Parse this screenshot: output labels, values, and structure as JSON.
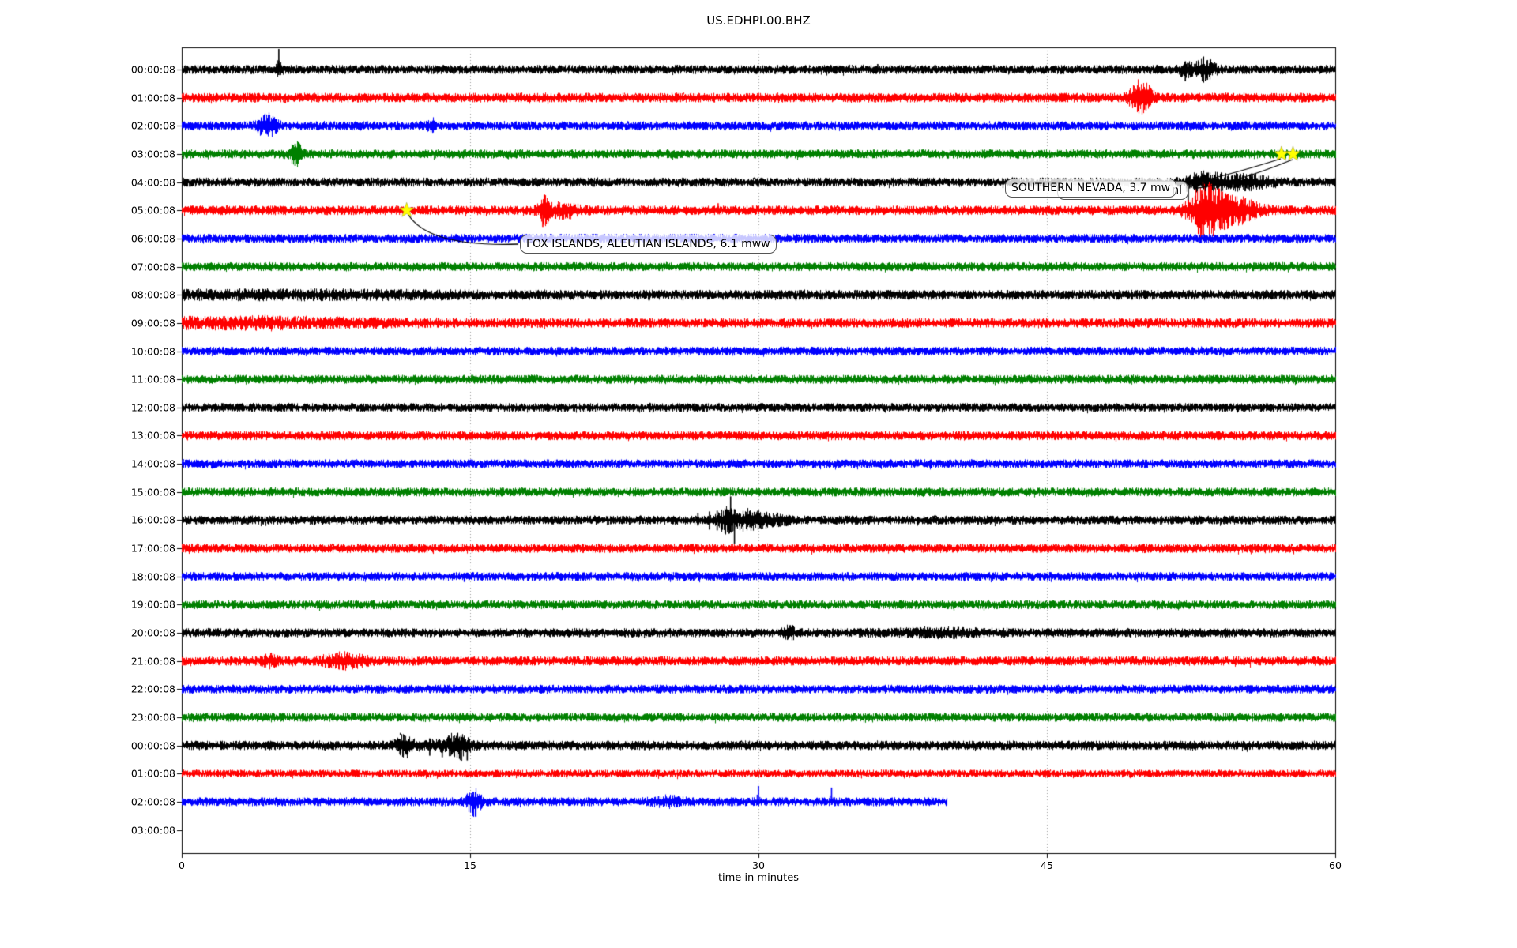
{
  "chart_data": {
    "type": "line",
    "subtype": "seismogram-helicorder-dayplot",
    "title": "US.EDHPI.00.BHZ",
    "xlabel": "time in minutes",
    "xlim": [
      0,
      60
    ],
    "xticks": [
      0,
      15,
      30,
      45,
      60
    ],
    "grid": {
      "vertical_dotted_minutes": [
        15,
        30,
        45
      ],
      "grid_color": "#999999"
    },
    "color_cycle": [
      "#000000",
      "#ff0000",
      "#0000ff",
      "#008000"
    ],
    "rows": [
      {
        "label": "00:00:08",
        "color": "#000000",
        "start_minute": 0,
        "end_minute": 60,
        "base_amp": 4.0,
        "events": [
          {
            "k": "burst",
            "t": 5.05,
            "w": 0.15,
            "a": 5
          },
          {
            "k": "spike",
            "t": 5.05,
            "up": 26,
            "dn": 7
          },
          {
            "k": "spike",
            "t": 36.2,
            "up": 7,
            "dn": 3
          },
          {
            "k": "burst",
            "t": 52.2,
            "w": 0.3,
            "a": 5
          },
          {
            "k": "spike",
            "t": 52.2,
            "up": 5,
            "dn": 15
          },
          {
            "k": "burst",
            "t": 53.2,
            "w": 0.5,
            "a": 8
          },
          {
            "k": "spike",
            "t": 53.35,
            "up": 12,
            "dn": 13
          }
        ]
      },
      {
        "label": "01:00:08",
        "color": "#ff0000",
        "start_minute": 0,
        "end_minute": 60,
        "base_amp": 4.2,
        "events": [
          {
            "k": "burst",
            "t": 49.9,
            "w": 0.55,
            "a": 13
          },
          {
            "k": "spike",
            "t": 49.75,
            "up": 12,
            "dn": 17
          },
          {
            "k": "spike",
            "t": 50.15,
            "up": 11,
            "dn": 15
          }
        ]
      },
      {
        "label": "02:00:08",
        "color": "#0000ff",
        "start_minute": 0,
        "end_minute": 60,
        "base_amp": 4.0,
        "events": [
          {
            "k": "burst",
            "t": 4.45,
            "w": 0.45,
            "a": 8
          },
          {
            "k": "spike",
            "t": 4.45,
            "up": 10,
            "dn": 11
          },
          {
            "k": "burst",
            "t": 13.0,
            "w": 0.2,
            "a": 4
          }
        ]
      },
      {
        "label": "03:00:08",
        "color": "#008000",
        "start_minute": 0,
        "end_minute": 60,
        "base_amp": 4.0,
        "events": [
          {
            "k": "burst",
            "t": 5.95,
            "w": 0.3,
            "a": 9
          },
          {
            "k": "spike",
            "t": 5.9,
            "up": 13,
            "dn": 15
          },
          {
            "k": "spike",
            "t": 6.15,
            "up": 11,
            "dn": 7
          }
        ]
      },
      {
        "label": "04:00:08",
        "color": "#000000",
        "start_minute": 0,
        "end_minute": 60,
        "base_amp": 4.0,
        "events": [
          {
            "k": "spike",
            "t": 52.35,
            "up": 7,
            "dn": 27
          },
          {
            "k": "burst",
            "t": 53.2,
            "w": 0.9,
            "a": 6
          },
          {
            "k": "burst",
            "t": 55.3,
            "w": 1.4,
            "a": 4.5
          }
        ]
      },
      {
        "label": "05:00:08",
        "color": "#ff0000",
        "start_minute": 0,
        "end_minute": 60,
        "base_amp": 4.2,
        "events": [
          {
            "k": "spike",
            "t": 18.78,
            "up": 9,
            "dn": 21
          },
          {
            "k": "burst",
            "t": 18.85,
            "w": 0.3,
            "a": 9
          },
          {
            "k": "burst",
            "t": 19.8,
            "w": 0.9,
            "a": 4
          },
          {
            "k": "spike",
            "t": 27.9,
            "up": 9,
            "dn": 5
          },
          {
            "k": "spike",
            "t": 29.7,
            "up": 6,
            "dn": 3
          },
          {
            "k": "spike",
            "t": 44.3,
            "up": 6,
            "dn": 3
          },
          {
            "k": "burst",
            "t": 53.2,
            "w": 0.8,
            "a": 20
          },
          {
            "k": "spike",
            "t": 53.05,
            "up": 25,
            "dn": 31
          },
          {
            "k": "burst",
            "t": 54.6,
            "w": 1.3,
            "a": 10
          },
          {
            "k": "spike",
            "t": 54.3,
            "up": 14,
            "dn": 12
          },
          {
            "k": "spike",
            "t": 54.9,
            "up": 12,
            "dn": 10
          }
        ]
      },
      {
        "label": "06:00:08",
        "color": "#0000ff",
        "start_minute": 0,
        "end_minute": 60,
        "base_amp": 4.0,
        "events": [
          {
            "k": "spike",
            "t": 22.3,
            "up": 3,
            "dn": 6
          }
        ]
      },
      {
        "label": "07:00:08",
        "color": "#008000",
        "start_minute": 0,
        "end_minute": 60,
        "base_amp": 3.9,
        "events": []
      },
      {
        "label": "08:00:08",
        "color": "#000000",
        "start_minute": 0,
        "end_minute": 60,
        "base_amp": 4.4,
        "events": [
          {
            "k": "burst",
            "t": 6.0,
            "w": 8.0,
            "a": 1.3
          }
        ]
      },
      {
        "label": "09:00:08",
        "color": "#ff0000",
        "start_minute": 0,
        "end_minute": 60,
        "base_amp": 4.2,
        "events": [
          {
            "k": "burst",
            "t": 3.5,
            "w": 6.5,
            "a": 2.6
          }
        ]
      },
      {
        "label": "10:00:08",
        "color": "#0000ff",
        "start_minute": 0,
        "end_minute": 60,
        "base_amp": 3.9,
        "events": []
      },
      {
        "label": "11:00:08",
        "color": "#008000",
        "start_minute": 0,
        "end_minute": 60,
        "base_amp": 3.9,
        "events": []
      },
      {
        "label": "12:00:08",
        "color": "#000000",
        "start_minute": 0,
        "end_minute": 60,
        "base_amp": 3.8,
        "events": [
          {
            "k": "spike",
            "t": 24.35,
            "up": 6,
            "dn": 6
          }
        ]
      },
      {
        "label": "13:00:08",
        "color": "#ff0000",
        "start_minute": 0,
        "end_minute": 60,
        "base_amp": 4.0,
        "events": []
      },
      {
        "label": "14:00:08",
        "color": "#0000ff",
        "start_minute": 0,
        "end_minute": 60,
        "base_amp": 3.9,
        "events": []
      },
      {
        "label": "15:00:08",
        "color": "#008000",
        "start_minute": 0,
        "end_minute": 60,
        "base_amp": 3.9,
        "events": []
      },
      {
        "label": "16:00:08",
        "color": "#000000",
        "start_minute": 0,
        "end_minute": 60,
        "base_amp": 3.9,
        "events": [
          {
            "k": "spike",
            "t": 26.85,
            "up": 9,
            "dn": 7
          },
          {
            "k": "spike",
            "t": 27.45,
            "up": 11,
            "dn": 12
          },
          {
            "k": "spike",
            "t": 27.85,
            "up": 12,
            "dn": 13
          },
          {
            "k": "burst",
            "t": 28.3,
            "w": 0.5,
            "a": 9
          },
          {
            "k": "spike",
            "t": 28.55,
            "up": 30,
            "dn": 12
          },
          {
            "k": "spike",
            "t": 28.75,
            "up": 14,
            "dn": 30
          },
          {
            "k": "burst",
            "t": 29.4,
            "w": 0.7,
            "a": 6
          },
          {
            "k": "spike",
            "t": 29.55,
            "up": 11,
            "dn": 9
          },
          {
            "k": "burst",
            "t": 30.6,
            "w": 1.0,
            "a": 3
          },
          {
            "k": "spike",
            "t": 31.8,
            "up": 5,
            "dn": 3
          }
        ]
      },
      {
        "label": "17:00:08",
        "color": "#ff0000",
        "start_minute": 0,
        "end_minute": 60,
        "base_amp": 4.0,
        "events": [
          {
            "k": "spike",
            "t": 48.8,
            "up": 5,
            "dn": 5
          }
        ]
      },
      {
        "label": "18:00:08",
        "color": "#0000ff",
        "start_minute": 0,
        "end_minute": 60,
        "base_amp": 3.9,
        "events": [
          {
            "k": "spike",
            "t": 14.7,
            "up": 4,
            "dn": 7
          }
        ]
      },
      {
        "label": "19:00:08",
        "color": "#008000",
        "start_minute": 0,
        "end_minute": 60,
        "base_amp": 3.9,
        "events": []
      },
      {
        "label": "20:00:08",
        "color": "#000000",
        "start_minute": 0,
        "end_minute": 60,
        "base_amp": 4.0,
        "events": [
          {
            "k": "burst",
            "t": 31.6,
            "w": 0.3,
            "a": 4
          },
          {
            "k": "burst",
            "t": 39.5,
            "w": 2.5,
            "a": 1.6
          }
        ]
      },
      {
        "label": "21:00:08",
        "color": "#ff0000",
        "start_minute": 0,
        "end_minute": 60,
        "base_amp": 4.1,
        "events": [
          {
            "k": "burst",
            "t": 4.6,
            "w": 0.4,
            "a": 3.5
          },
          {
            "k": "burst",
            "t": 8.4,
            "w": 1.1,
            "a": 4.5
          }
        ]
      },
      {
        "label": "22:00:08",
        "color": "#0000ff",
        "start_minute": 0,
        "end_minute": 60,
        "base_amp": 3.9,
        "events": []
      },
      {
        "label": "23:00:08",
        "color": "#008000",
        "start_minute": 0,
        "end_minute": 60,
        "base_amp": 3.9,
        "events": []
      },
      {
        "label": "00:00:08",
        "color": "#000000",
        "start_minute": 0,
        "end_minute": 60,
        "base_amp": 4.1,
        "events": [
          {
            "k": "burst",
            "t": 11.5,
            "w": 0.45,
            "a": 7
          },
          {
            "k": "spike",
            "t": 11.35,
            "up": 8,
            "dn": 11
          },
          {
            "k": "spike",
            "t": 12.9,
            "up": 9,
            "dn": 13
          },
          {
            "k": "spike",
            "t": 13.55,
            "up": 5,
            "dn": 15
          },
          {
            "k": "burst",
            "t": 13.5,
            "w": 1.5,
            "a": 2
          },
          {
            "k": "burst",
            "t": 14.35,
            "w": 0.5,
            "a": 8
          },
          {
            "k": "spike",
            "t": 14.45,
            "up": 11,
            "dn": 17
          },
          {
            "k": "spike",
            "t": 14.85,
            "up": 5,
            "dn": 19
          }
        ]
      },
      {
        "label": "01:00:08",
        "color": "#ff0000",
        "start_minute": 0,
        "end_minute": 60,
        "base_amp": 3.4,
        "events": []
      },
      {
        "label": "02:00:08",
        "color": "#0000ff",
        "start_minute": 0,
        "end_minute": 39.8,
        "base_amp": 3.9,
        "events": [
          {
            "k": "burst",
            "t": 15.2,
            "w": 0.35,
            "a": 10
          },
          {
            "k": "spike",
            "t": 15.3,
            "up": 11,
            "dn": 19
          },
          {
            "k": "spike",
            "t": 24.8,
            "up": 7,
            "dn": 3
          },
          {
            "k": "burst",
            "t": 25.3,
            "w": 0.8,
            "a": 2.5
          },
          {
            "k": "spike",
            "t": 30.0,
            "up": 20,
            "dn": 4
          },
          {
            "k": "spike",
            "t": 33.8,
            "up": 18,
            "dn": 4
          }
        ]
      },
      {
        "label": "03:00:08",
        "color": null,
        "no_trace": true,
        "events": []
      }
    ],
    "annotations": [
      {
        "id": "fox-islands",
        "text": "FOX ISLANDS, ALEUTIAN ISLANDS, 6.1 mww",
        "stars": [
          {
            "row": 5,
            "minute": 11.7
          }
        ],
        "star_color": "#ffff00"
      },
      {
        "id": "southern-nevada",
        "text": "SOUTHERN NEVADA, 3.7 mw",
        "stars": [
          {
            "row": 3,
            "minute": 57.2
          },
          {
            "row": 3,
            "minute": 57.8
          }
        ],
        "star_color": "#ffff00"
      },
      {
        "id": "nevada-fragment",
        "text": "nl",
        "stars": []
      }
    ]
  }
}
